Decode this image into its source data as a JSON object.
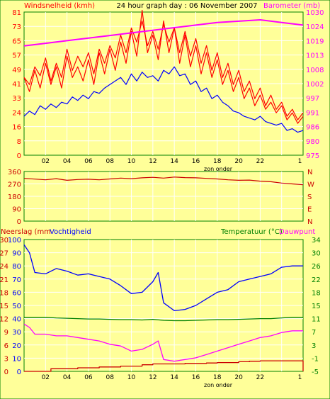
{
  "colors": {
    "background": "#ffff99",
    "border": "#008000",
    "grid": "#ffffff",
    "axis_text": "#000000",
    "wind": "#ff0000",
    "gust": "#ff0000",
    "avg_wind": "#0000ff",
    "barometer": "#ff00ff",
    "wind_dir": "#cc0000",
    "rain": "#cc0000",
    "humidity": "#0000ff",
    "temperature": "#008000",
    "dewpoint": "#ff00ff",
    "rain_label": "#cc0000",
    "dewpoint_label": "#ff00ff",
    "temp_label": "#008000"
  },
  "header": {
    "left_label": "Windsnelheid (kmh)",
    "title": "24 hour graph day : 06 November 2007",
    "right_label": "Barometer (mb)"
  },
  "x_ticks": [
    "02",
    "04",
    "06",
    "08",
    "10",
    "12",
    "14",
    "16",
    "18",
    "20",
    "22",
    "1"
  ],
  "x_sublabel": "zon onder",
  "chart_data": [
    {
      "type": "line",
      "name_panel": "wind-barometer",
      "x_range": [
        0,
        26
      ],
      "left_axis": {
        "label": "Windsnelheid (kmh)",
        "ticks": [
          0,
          8,
          16,
          24,
          33,
          41,
          49,
          57,
          65,
          73,
          81
        ],
        "range": [
          0,
          81
        ]
      },
      "right_axis": {
        "label": "Barometer (mb)",
        "ticks": [
          975,
          980,
          986,
          991,
          997,
          1002,
          1008,
          1013,
          1019,
          1024,
          1030
        ],
        "range": [
          975,
          1030
        ]
      },
      "series": [
        {
          "role": "gust",
          "axis": "left",
          "x": [
            0,
            0.5,
            1,
            1.5,
            2,
            2.5,
            3,
            3.5,
            4,
            4.5,
            5,
            5.5,
            6,
            6.5,
            7,
            7.5,
            8,
            8.5,
            9,
            9.5,
            10,
            10.5,
            11,
            11.5,
            12,
            12.5,
            13,
            13.5,
            14,
            14.5,
            15,
            15.5,
            16,
            16.5,
            17,
            17.5,
            18,
            18.5,
            19,
            19.5,
            20,
            20.5,
            21,
            21.5,
            22,
            22.5,
            23,
            23.5,
            24,
            24.5,
            25,
            25.5,
            26
          ],
          "y": [
            44,
            40,
            50,
            45,
            55,
            42,
            52,
            44,
            60,
            48,
            56,
            50,
            58,
            46,
            60,
            52,
            62,
            55,
            68,
            58,
            72,
            64,
            76,
            62,
            70,
            60,
            74,
            64,
            72,
            58,
            70,
            56,
            66,
            52,
            62,
            48,
            58,
            44,
            52,
            40,
            48,
            36,
            42,
            32,
            38,
            28,
            34,
            26,
            30,
            22,
            26,
            20,
            24
          ]
        },
        {
          "role": "wind",
          "axis": "left",
          "x": [
            0,
            0.5,
            1,
            1.5,
            2,
            2.5,
            3,
            3.5,
            4,
            4.5,
            5,
            5.5,
            6,
            6.5,
            7,
            7.5,
            8,
            8.5,
            9,
            9.5,
            10,
            10.5,
            11,
            11.5,
            12,
            12.5,
            13,
            13.5,
            14,
            14.5,
            15,
            15.5,
            16,
            16.5,
            17,
            17.5,
            18,
            18.5,
            19,
            19.5,
            20,
            20.5,
            21,
            21.5,
            22,
            22.5,
            23,
            23.5,
            24,
            24.5,
            25,
            25.5,
            26
          ],
          "y": [
            44,
            36,
            48,
            38,
            52,
            40,
            50,
            38,
            56,
            44,
            50,
            42,
            54,
            40,
            58,
            46,
            60,
            48,
            64,
            52,
            70,
            56,
            82,
            58,
            68,
            54,
            76,
            58,
            72,
            52,
            68,
            50,
            62,
            46,
            58,
            44,
            54,
            40,
            48,
            36,
            44,
            32,
            38,
            28,
            34,
            26,
            30,
            24,
            28,
            20,
            24,
            18,
            22
          ]
        },
        {
          "role": "avg_wind",
          "axis": "left",
          "x": [
            0,
            0.5,
            1,
            1.5,
            2,
            2.5,
            3,
            3.5,
            4,
            4.5,
            5,
            5.5,
            6,
            6.5,
            7,
            7.5,
            8,
            8.5,
            9,
            9.5,
            10,
            10.5,
            11,
            11.5,
            12,
            12.5,
            13,
            13.5,
            14,
            14.5,
            15,
            15.5,
            16,
            16.5,
            17,
            17.5,
            18,
            18.5,
            19,
            19.5,
            20,
            20.5,
            21,
            21.5,
            22,
            22.5,
            23,
            23.5,
            24,
            24.5,
            25,
            25.5,
            26
          ],
          "y": [
            22,
            25,
            23,
            28,
            26,
            29,
            27,
            30,
            29,
            33,
            31,
            34,
            32,
            36,
            35,
            38,
            40,
            42,
            44,
            40,
            46,
            42,
            47,
            44,
            45,
            42,
            48,
            46,
            50,
            45,
            46,
            40,
            42,
            36,
            38,
            32,
            34,
            30,
            28,
            25,
            24,
            22,
            21,
            20,
            22,
            19,
            18,
            17,
            18,
            14,
            15,
            13,
            14
          ]
        },
        {
          "role": "barometer",
          "axis": "right",
          "x": [
            0,
            2,
            4,
            6,
            8,
            10,
            12,
            14,
            16,
            18,
            20,
            22,
            24,
            26
          ],
          "y": [
            1017,
            1018,
            1019,
            1020,
            1021,
            1022,
            1023,
            1024,
            1025,
            1026,
            1026.5,
            1027,
            1026,
            1025
          ]
        }
      ]
    },
    {
      "type": "line",
      "name_panel": "wind-direction",
      "x_range": [
        0,
        26
      ],
      "left_axis": {
        "ticks": [
          0,
          90,
          180,
          270,
          360
        ],
        "range": [
          0,
          360
        ]
      },
      "right_axis": {
        "ticks": [
          "N",
          "E",
          "S",
          "W",
          "N"
        ]
      },
      "series": [
        {
          "role": "wind_dir",
          "axis": "left",
          "x": [
            0,
            1,
            2,
            3,
            4,
            5,
            6,
            7,
            8,
            9,
            10,
            11,
            12,
            13,
            14,
            15,
            16,
            17,
            18,
            19,
            20,
            21,
            22,
            23,
            24,
            25,
            26
          ],
          "y": [
            310,
            305,
            300,
            308,
            296,
            302,
            304,
            300,
            306,
            312,
            308,
            314,
            318,
            312,
            320,
            316,
            314,
            310,
            306,
            300,
            296,
            298,
            290,
            286,
            276,
            270,
            264
          ]
        }
      ]
    },
    {
      "type": "line",
      "name_panel": "rain-humidity-temperature",
      "x_range": [
        0,
        26
      ],
      "rain_axis": {
        "label": "Neerslag (mm",
        "ticks": [
          0,
          3,
          6,
          9,
          12,
          15,
          18,
          21,
          24,
          27,
          30
        ],
        "range": [
          0,
          30
        ]
      },
      "humidity_axis": {
        "label": "Vochtigheid",
        "ticks": [
          0,
          10,
          20,
          30,
          40,
          50,
          60,
          70,
          80,
          90,
          100
        ],
        "range": [
          0,
          100
        ]
      },
      "temp_axis": {
        "label": "Temperatuur (°C)",
        "label_suffix": "Dauwpunt",
        "ticks": [
          -5,
          -1,
          3,
          7,
          11,
          15,
          18,
          22,
          26,
          30,
          34
        ],
        "range": [
          -5,
          34
        ]
      },
      "series": [
        {
          "role": "humidity",
          "axis": "humidity",
          "x": [
            0,
            0.5,
            1,
            2,
            3,
            4,
            5,
            6,
            7,
            8,
            9,
            10,
            11,
            12,
            12.5,
            13,
            14,
            15,
            16,
            17,
            18,
            19,
            20,
            21,
            22,
            23,
            24,
            25,
            26
          ],
          "y": [
            96,
            90,
            75,
            74,
            78,
            76,
            73,
            74,
            72,
            70,
            65,
            59,
            60,
            68,
            75,
            52,
            46,
            47,
            50,
            55,
            60,
            62,
            68,
            70,
            72,
            74,
            79,
            80,
            80
          ]
        },
        {
          "role": "temperature",
          "axis": "temp",
          "x": [
            0,
            1,
            2,
            3,
            4,
            5,
            6,
            7,
            8,
            9,
            10,
            11,
            12,
            13,
            14,
            15,
            16,
            17,
            18,
            19,
            20,
            21,
            22,
            23,
            24,
            25,
            26
          ],
          "y": [
            11,
            11,
            11,
            10.8,
            10.7,
            10.6,
            10.5,
            10.5,
            10.4,
            10.3,
            10.3,
            10.2,
            10.4,
            10.1,
            10,
            10,
            10.1,
            10.2,
            10.3,
            10.3,
            10.4,
            10.5,
            10.6,
            10.6,
            10.8,
            11,
            11
          ]
        },
        {
          "role": "dewpoint",
          "axis": "temp",
          "x": [
            0,
            0.5,
            1,
            2,
            3,
            4,
            5,
            6,
            7,
            8,
            9,
            10,
            11,
            12,
            12.5,
            13,
            14,
            15,
            16,
            17,
            18,
            19,
            20,
            21,
            22,
            23,
            24,
            25,
            26
          ],
          "y": [
            9,
            8,
            6,
            6,
            5.5,
            5.5,
            5,
            4.5,
            4,
            3,
            2.5,
            1,
            1.5,
            3,
            4,
            -1.5,
            -2,
            -1.5,
            -1,
            0,
            1,
            2,
            3,
            4,
            5,
            5.5,
            6.5,
            7,
            7
          ]
        },
        {
          "role": "rain",
          "axis": "rain",
          "x": [
            0,
            2,
            2.5,
            4,
            5,
            6,
            7,
            8,
            9,
            10,
            11,
            12,
            13,
            14,
            15,
            16,
            17,
            18,
            19,
            20,
            21,
            22,
            23,
            24,
            25,
            25.8,
            26
          ],
          "y": [
            0,
            0,
            0.6,
            0.6,
            0.8,
            0.8,
            1.0,
            1.0,
            1.2,
            1.2,
            1.5,
            1.7,
            1.7,
            1.7,
            1.8,
            1.8,
            1.9,
            2.0,
            2.0,
            2.2,
            2.3,
            2.4,
            2.4,
            2.4,
            2.4,
            2.4,
            0
          ]
        }
      ]
    }
  ],
  "panel3": {
    "rain_label": "Neerslag (mm",
    "humidity_label": "Vochtigheid",
    "temp_label": "Temperatuur (°C)",
    "dewpoint_label": "Dauwpunt"
  }
}
